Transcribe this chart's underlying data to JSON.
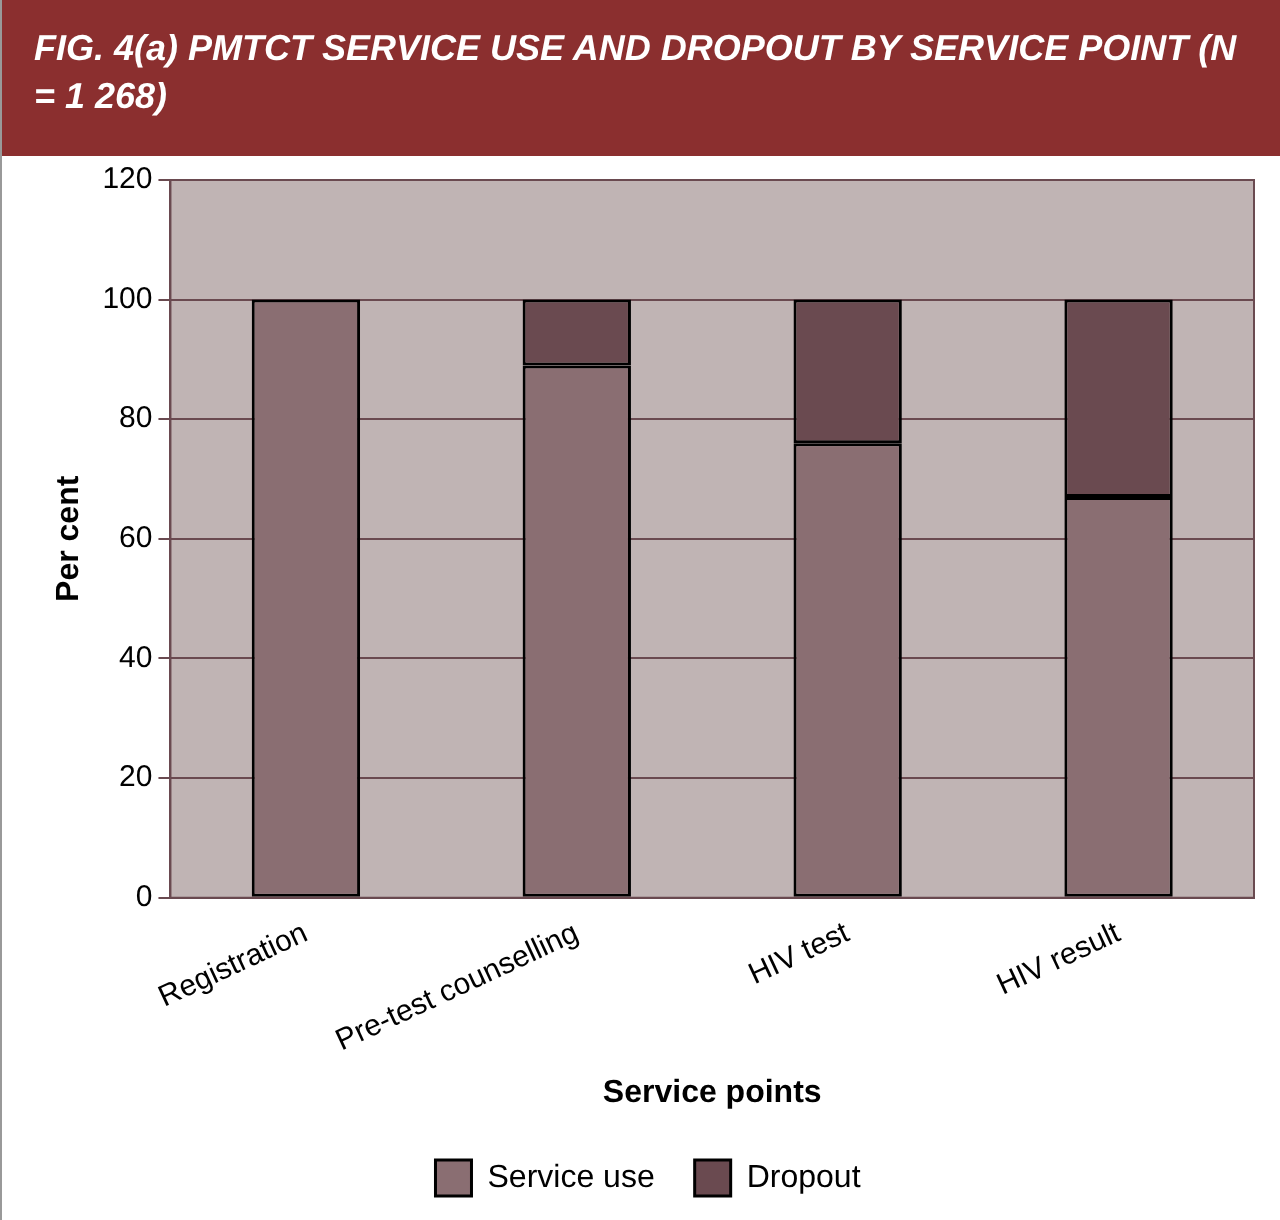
{
  "chart_data": {
    "type": "bar",
    "title": "FIG. 4(a) PMTCT SERVICE USE AND DROPOUT BY SERVICE POINT (N = 1 268)",
    "xlabel": "Service points",
    "ylabel": "Per cent",
    "categories": [
      "Registration",
      "Pre-test counselling",
      "HIV test",
      "HIV result"
    ],
    "series": [
      {
        "name": "Service use",
        "color": "#8a6e72",
        "values": [
          100,
          89,
          76,
          67
        ]
      },
      {
        "name": "Dropout",
        "color": "#6a4a50",
        "values": [
          null,
          11,
          24,
          33
        ]
      }
    ],
    "stacked": true,
    "ylim": [
      0,
      120
    ],
    "yticks": [
      0,
      20,
      40,
      60,
      80,
      100,
      120
    ],
    "grid": "y",
    "legend": "bottom"
  }
}
